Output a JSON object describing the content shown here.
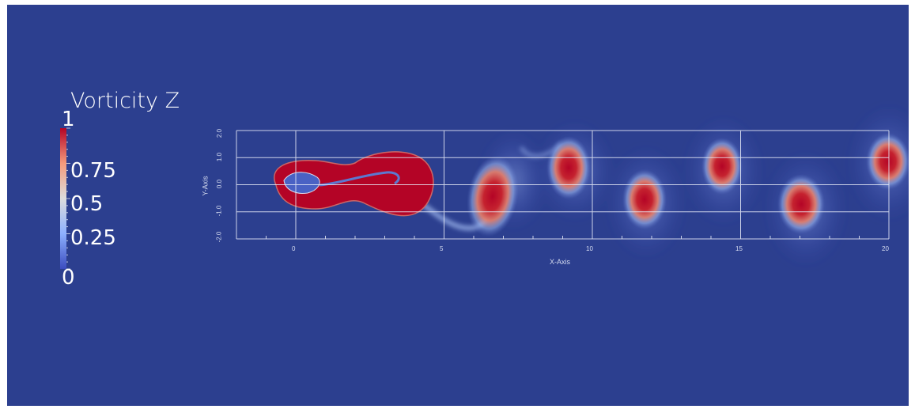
{
  "scene": {
    "background_color": "#2c3f8f",
    "colormap": [
      "#3b4cc0",
      "#dddddd",
      "#b40426"
    ]
  },
  "colorbar": {
    "title": "Vorticity Z",
    "labels": [
      "1",
      "0.75",
      "0.5",
      "0.25",
      "0"
    ],
    "range": [
      0,
      1
    ]
  },
  "axes": {
    "x_title": "X-Axis",
    "y_title": "Y-Axis",
    "x_ticks": [
      "0",
      "5",
      "10",
      "15",
      "20"
    ],
    "y_ticks": [
      "2.0",
      "1.0",
      "0.0",
      "-1.0",
      "-2.0"
    ],
    "x_range": [
      -2,
      20
    ],
    "y_range": [
      -2,
      2
    ],
    "grid": true
  }
}
